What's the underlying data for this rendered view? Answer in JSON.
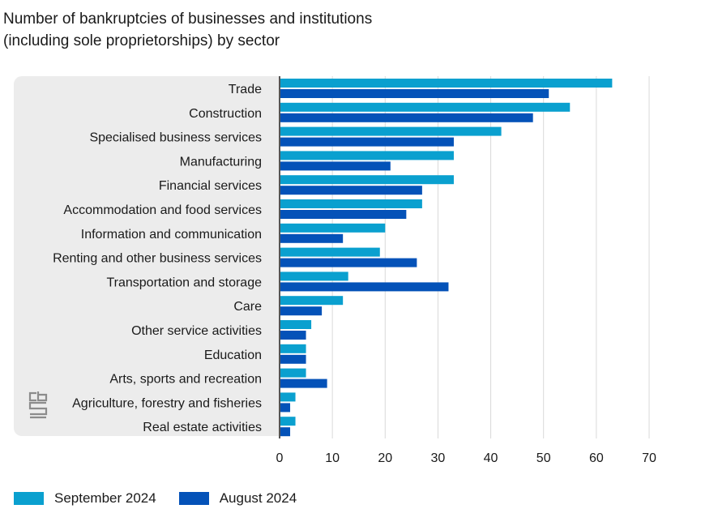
{
  "title_lines": [
    "Number of bankruptcies of businesses and institutions",
    "(including sole proprietorships) by sector"
  ],
  "colors": {
    "series_1": "#0aa0cf",
    "series_2": "#0452b8",
    "panel": "#ececec",
    "grid": "#d9d9d9"
  },
  "logo": {
    "text": "cbs",
    "icon": "cbs-logo-icon"
  },
  "chart_data": {
    "type": "bar",
    "orientation": "horizontal",
    "categories": [
      "Trade",
      "Construction",
      "Specialised business services",
      "Manufacturing",
      "Financial services",
      "Accommodation and food services",
      "Information and communication",
      "Renting and other business services",
      "Transportation and storage",
      "Care",
      "Other service activities",
      "Education",
      "Arts, sports and recreation",
      "Agriculture, forestry and fisheries",
      "Real estate activities"
    ],
    "series": [
      {
        "name": "September 2024",
        "color": "#0aa0cf",
        "values": [
          63,
          55,
          42,
          33,
          33,
          27,
          20,
          19,
          13,
          12,
          6,
          5,
          5,
          3,
          3
        ]
      },
      {
        "name": "August 2024",
        "color": "#0452b8",
        "values": [
          51,
          48,
          33,
          21,
          27,
          24,
          12,
          26,
          32,
          8,
          5,
          5,
          9,
          2,
          2
        ]
      }
    ],
    "xlim": [
      0,
      70
    ],
    "xticks": [
      0,
      10,
      20,
      30,
      40,
      50,
      60,
      70
    ],
    "grid": true,
    "legend": "bottom-left"
  }
}
